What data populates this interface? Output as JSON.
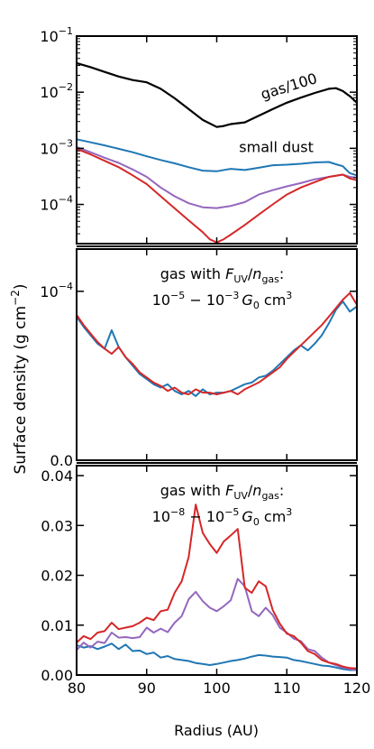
{
  "colors": {
    "blue": "#1f77b4",
    "purple": "#9467bd",
    "red": "#d62728",
    "black": "#000000"
  },
  "figure": {
    "ylabel": "Surface density (g cm",
    "ylabel_sup": "−2",
    "ylabel_close": ")",
    "xlabel": "Radius (AU)"
  },
  "chart_data": [
    {
      "type": "line",
      "panel": "top",
      "yscale": "log",
      "xlim": [
        80,
        120
      ],
      "ylim": [
        2e-05,
        0.1
      ],
      "x_ticks": [
        80,
        90,
        100,
        110,
        120
      ],
      "y_ticks": [
        {
          "value": 0.0001,
          "base": "10",
          "exp": "−4"
        },
        {
          "value": 0.001,
          "base": "10",
          "exp": "−3"
        },
        {
          "value": 0.01,
          "base": "10",
          "exp": "−2"
        },
        {
          "value": 0.1,
          "base": "10",
          "exp": "−1"
        }
      ],
      "annotations": [
        {
          "text": "gas/100",
          "x": 110.5,
          "y": 0.0105,
          "rotate": -17
        },
        {
          "text": "small dust",
          "x": 108.5,
          "y": 0.00085,
          "rotate": 0
        }
      ],
      "series": [
        {
          "color": "black",
          "x": [
            80,
            82,
            84,
            86,
            88,
            90,
            92,
            94,
            96,
            98,
            100,
            101,
            102,
            104,
            106,
            108,
            110,
            112,
            114,
            116,
            117,
            118,
            119,
            120
          ],
          "y": [
            0.033,
            0.028,
            0.023,
            0.019,
            0.0165,
            0.015,
            0.0115,
            0.0078,
            0.005,
            0.0032,
            0.0024,
            0.0025,
            0.0027,
            0.0029,
            0.0038,
            0.005,
            0.0065,
            0.008,
            0.0097,
            0.0115,
            0.0118,
            0.0105,
            0.0085,
            0.0065
          ]
        },
        {
          "color": "blue",
          "x": [
            80,
            82,
            84,
            86,
            88,
            90,
            92,
            94,
            96,
            98,
            100,
            102,
            104,
            106,
            108,
            110,
            112,
            114,
            116,
            117,
            118,
            119,
            120
          ],
          "y": [
            0.00145,
            0.00128,
            0.00113,
            0.00098,
            0.00085,
            0.00072,
            0.00062,
            0.00054,
            0.00046,
            0.0004,
            0.00039,
            0.00043,
            0.00041,
            0.00045,
            0.0005,
            0.00051,
            0.00053,
            0.00056,
            0.00057,
            0.00052,
            0.00048,
            0.00036,
            0.00033
          ]
        },
        {
          "color": "purple",
          "x": [
            80,
            82,
            84,
            86,
            88,
            90,
            92,
            94,
            96,
            98,
            100,
            102,
            104,
            106,
            108,
            110,
            112,
            114,
            116,
            118,
            119,
            120
          ],
          "y": [
            0.00105,
            0.00085,
            0.00068,
            0.00055,
            0.00042,
            0.00031,
            0.0002,
            0.00014,
            0.000105,
            8.9e-05,
            8.6e-05,
            9.4e-05,
            0.00011,
            0.00015,
            0.00018,
            0.00021,
            0.00024,
            0.00028,
            0.00031,
            0.00034,
            0.00031,
            0.0003
          ]
        },
        {
          "color": "red",
          "x": [
            80,
            82,
            84,
            86,
            88,
            90,
            92,
            94,
            96,
            98,
            99,
            100,
            101,
            102,
            104,
            106,
            108,
            110,
            112,
            114,
            116,
            118,
            119,
            120
          ],
          "y": [
            0.00098,
            0.00078,
            0.0006,
            0.00046,
            0.00033,
            0.00023,
            0.00014,
            8.5e-05,
            5.2e-05,
            3.2e-05,
            2.4e-05,
            2.1e-05,
            2.4e-05,
            2.9e-05,
            4.3e-05,
            6.6e-05,
            0.0001,
            0.00015,
            0.0002,
            0.00025,
            0.00031,
            0.00034,
            0.00029,
            0.00027
          ]
        }
      ]
    },
    {
      "type": "line",
      "panel": "middle",
      "yscale": "log",
      "xlim": [
        80,
        120
      ],
      "ylim": [
        0,
        0.000125
      ],
      "x_ticks": [
        80,
        90,
        100,
        110,
        120
      ],
      "y_ticks": [
        {
          "value": 0.0,
          "label": "0.0"
        },
        {
          "value": 0.0001,
          "base": "10",
          "exp": "−4"
        }
      ],
      "annotation": {
        "line1_prefix": "gas with ",
        "F": "F",
        "F_sub": "UV",
        "slash": "/",
        "n": "n",
        "n_sub": "gas",
        "colon": ":",
        "line2_a": "10",
        "line2_a_exp": "−5",
        "line2_mid": " − 10",
        "line2_b_exp": "−3",
        "line2_G": "G",
        "line2_G_sub": "0",
        "line2_unit": " cm",
        "line2_unit_exp": "3"
      },
      "series": [
        {
          "color": "blue",
          "x": [
            80,
            81,
            82,
            83,
            84,
            85,
            86,
            87,
            88,
            89,
            90,
            91,
            92,
            93,
            94,
            95,
            96,
            97,
            98,
            99,
            100,
            101,
            102,
            103,
            104,
            105,
            106,
            107,
            108,
            109,
            110,
            111,
            112,
            113,
            114,
            115,
            116,
            117,
            118,
            119,
            120
          ],
          "y": [
            8.5e-05,
            7.9e-05,
            7.4e-05,
            6.9e-05,
            6.6e-05,
            7.7e-05,
            6.7e-05,
            6.1e-05,
            5.6e-05,
            5.1e-05,
            4.8e-05,
            4.5e-05,
            4.3e-05,
            4.5e-05,
            4.1e-05,
            3.9e-05,
            4.1e-05,
            3.8e-05,
            4.2e-05,
            3.9e-05,
            4e-05,
            4e-05,
            4.1e-05,
            4.3e-05,
            4.5e-05,
            4.6e-05,
            4.9e-05,
            5e-05,
            5.3e-05,
            5.7e-05,
            6.1e-05,
            6.5e-05,
            6.8e-05,
            6.5e-05,
            6.9e-05,
            7.4e-05,
            8.1e-05,
            8.9e-05,
            9.4e-05,
            8.8e-05,
            9.1e-05
          ]
        },
        {
          "color": "red",
          "x": [
            80,
            81,
            82,
            83,
            84,
            85,
            86,
            87,
            88,
            89,
            90,
            91,
            92,
            93,
            94,
            95,
            96,
            97,
            98,
            99,
            100,
            101,
            102,
            103,
            104,
            105,
            106,
            107,
            108,
            109,
            110,
            111,
            112,
            113,
            114,
            115,
            116,
            117,
            118,
            119,
            120
          ],
          "y": [
            8.6e-05,
            8e-05,
            7.5e-05,
            7e-05,
            6.6e-05,
            6.3e-05,
            6.7e-05,
            6.1e-05,
            5.7e-05,
            5.2e-05,
            4.9e-05,
            4.6e-05,
            4.4e-05,
            4.1e-05,
            4.3e-05,
            4e-05,
            3.9e-05,
            4.2e-05,
            4e-05,
            4e-05,
            3.9e-05,
            4e-05,
            4.1e-05,
            3.9e-05,
            4.2e-05,
            4.4e-05,
            4.6e-05,
            4.9e-05,
            5.2e-05,
            5.5e-05,
            6e-05,
            6.4e-05,
            6.8e-05,
            7.2e-05,
            7.6e-05,
            8e-05,
            8.5e-05,
            9e-05,
            9.5e-05,
            9.9e-05,
            9.2e-05
          ]
        }
      ]
    },
    {
      "type": "line",
      "panel": "bottom",
      "yscale": "linear",
      "xlim": [
        80,
        120
      ],
      "ylim": [
        0,
        0.042
      ],
      "x_ticks": [
        80,
        90,
        100,
        110,
        120
      ],
      "y_ticks": [
        {
          "value": 0.0,
          "label": "0.00"
        },
        {
          "value": 0.01,
          "label": "0.01"
        },
        {
          "value": 0.02,
          "label": "0.02"
        },
        {
          "value": 0.03,
          "label": "0.03"
        },
        {
          "value": 0.04,
          "label": "0.04"
        }
      ],
      "annotation": {
        "line1_prefix": "gas with ",
        "F": "F",
        "F_sub": "UV",
        "slash": "/",
        "n": "n",
        "n_sub": "gas",
        "colon": ":",
        "line2_a": "10",
        "line2_a_exp": "−8",
        "line2_mid": " − 10",
        "line2_b_exp": "−5",
        "line2_G": "G",
        "line2_G_sub": "0",
        "line2_unit": " cm",
        "line2_unit_exp": "3"
      },
      "series": [
        {
          "color": "blue",
          "x": [
            80,
            81,
            82,
            83,
            84,
            85,
            86,
            87,
            88,
            89,
            90,
            91,
            92,
            93,
            94,
            95,
            96,
            97,
            98,
            99,
            100,
            101,
            102,
            103,
            104,
            105,
            106,
            107,
            108,
            109,
            110,
            111,
            112,
            113,
            114,
            115,
            116,
            117,
            118,
            119,
            120
          ],
          "y": [
            0.006,
            0.0055,
            0.0058,
            0.0052,
            0.0057,
            0.0063,
            0.0052,
            0.0061,
            0.0048,
            0.0049,
            0.0042,
            0.0045,
            0.0035,
            0.0038,
            0.0032,
            0.003,
            0.0028,
            0.0024,
            0.0022,
            0.002,
            0.0022,
            0.0025,
            0.0028,
            0.003,
            0.0033,
            0.0037,
            0.004,
            0.0039,
            0.0037,
            0.0036,
            0.0035,
            0.003,
            0.0028,
            0.0025,
            0.0022,
            0.0019,
            0.0018,
            0.0015,
            0.0012,
            0.001,
            0.001
          ]
        },
        {
          "color": "purple",
          "x": [
            80,
            81,
            82,
            83,
            84,
            85,
            86,
            87,
            88,
            89,
            90,
            91,
            92,
            93,
            94,
            95,
            96,
            97,
            98,
            99,
            100,
            101,
            102,
            103,
            104,
            105,
            106,
            107,
            108,
            109,
            110,
            111,
            112,
            113,
            114,
            115,
            116,
            117,
            118,
            119,
            120
          ],
          "y": [
            0.005,
            0.0065,
            0.0055,
            0.0067,
            0.0064,
            0.0085,
            0.0075,
            0.0076,
            0.0074,
            0.0076,
            0.0095,
            0.0085,
            0.0093,
            0.0086,
            0.0105,
            0.0118,
            0.0152,
            0.0167,
            0.0148,
            0.0135,
            0.0128,
            0.0138,
            0.015,
            0.0193,
            0.0178,
            0.0128,
            0.0118,
            0.0135,
            0.012,
            0.0095,
            0.0085,
            0.0073,
            0.0068,
            0.0052,
            0.0048,
            0.0035,
            0.0025,
            0.002,
            0.0015,
            0.0012,
            0.001
          ]
        },
        {
          "color": "red",
          "x": [
            80,
            81,
            82,
            83,
            84,
            85,
            86,
            87,
            88,
            89,
            90,
            91,
            92,
            93,
            94,
            95,
            96,
            97,
            98,
            99,
            100,
            101,
            102,
            103,
            104,
            105,
            106,
            107,
            108,
            109,
            110,
            111,
            112,
            113,
            114,
            115,
            116,
            117,
            118,
            119,
            120
          ],
          "y": [
            0.0065,
            0.0078,
            0.0072,
            0.0085,
            0.0088,
            0.0105,
            0.0092,
            0.0095,
            0.0098,
            0.0105,
            0.0115,
            0.011,
            0.0128,
            0.0131,
            0.0165,
            0.0188,
            0.0237,
            0.0342,
            0.0285,
            0.0263,
            0.0245,
            0.0268,
            0.028,
            0.0293,
            0.0175,
            0.0165,
            0.0188,
            0.0178,
            0.013,
            0.0103,
            0.0083,
            0.0078,
            0.0065,
            0.0048,
            0.0042,
            0.003,
            0.0025,
            0.0022,
            0.0017,
            0.0014,
            0.0013
          ]
        }
      ]
    }
  ]
}
